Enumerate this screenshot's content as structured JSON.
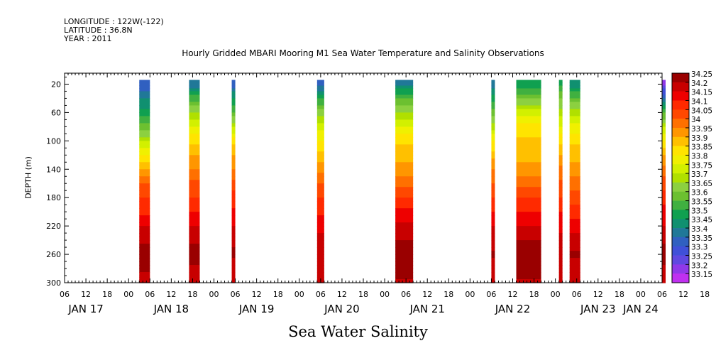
{
  "header": {
    "longitude": "LONGITUDE : 122W(-122)",
    "latitude": "LATITUDE : 36.8N",
    "year": "YEAR : 2011"
  },
  "chart_data": {
    "type": "heatmap",
    "title": "Hourly Gridded MBARI Mooring M1 Sea Water Temperature and Salinity Observations",
    "caption": "Sea Water Salinity",
    "ylabel": "DEPTH (m)",
    "y_ticks": [
      20,
      60,
      100,
      140,
      180,
      220,
      260,
      300
    ],
    "ylim": [
      300,
      0
    ],
    "x_hour_ticks": [
      "06",
      "12",
      "18",
      "00",
      "06",
      "12",
      "18",
      "00",
      "06",
      "12",
      "18",
      "00",
      "06",
      "12",
      "18",
      "00",
      "06",
      "12",
      "18",
      "00",
      "06",
      "12",
      "18",
      "00",
      "06",
      "12",
      "18",
      "00",
      "06",
      "12",
      "18",
      "00",
      "06"
    ],
    "x_day_labels": [
      "JAN 17",
      "JAN 18",
      "JAN 19",
      "JAN 20",
      "JAN 21",
      "JAN 22",
      "JAN 23",
      "JAN 24"
    ],
    "x_range_hours_from_jan17_00": [
      6,
      174
    ],
    "colorbar_levels": [
      "34.25",
      "34.2",
      "34.15",
      "34.1",
      "34.05",
      "34",
      "33.95",
      "33.9",
      "33.85",
      "33.8",
      "33.75",
      "33.7",
      "33.65",
      "33.6",
      "33.55",
      "33.5",
      "33.45",
      "33.4",
      "33.35",
      "33.3",
      "33.25",
      "33.2",
      "33.15"
    ],
    "colors": [
      "#9a0000",
      "#c80000",
      "#ee0000",
      "#ff2a00",
      "#ff4800",
      "#ff7000",
      "#ff9600",
      "#ffc000",
      "#ffe400",
      "#f0f000",
      "#d2f000",
      "#b0e000",
      "#8cd040",
      "#6cc030",
      "#40b040",
      "#10a050",
      "#109070",
      "#207898",
      "#3060c0",
      "#4050d8",
      "#6048e0",
      "#9038e8",
      "#c030f0"
    ],
    "depth_levels": [
      20,
      40,
      60,
      80,
      100,
      120,
      140,
      160,
      180,
      200,
      220,
      240,
      260,
      280,
      300
    ],
    "data_blocks": [
      {
        "start": "JAN 18 03:00",
        "end": "JAN 18 06:00",
        "salinity": [
          33.33,
          33.42,
          33.5,
          33.6,
          33.72,
          33.82,
          33.93,
          34.02,
          34.07,
          34.11,
          34.17,
          34.22,
          34.25,
          34.23,
          34.2
        ]
      },
      {
        "start": "JAN 18 17:00",
        "end": "JAN 18 20:00",
        "salinity": [
          33.38,
          33.55,
          33.68,
          33.78,
          33.86,
          33.92,
          33.98,
          34.04,
          34.08,
          34.12,
          34.17,
          34.22,
          34.24,
          34.22,
          34.2
        ]
      },
      {
        "start": "JAN 19 05:00",
        "end": "JAN 19 06:00",
        "salinity": [
          33.34,
          33.48,
          33.58,
          33.72,
          33.85,
          33.92,
          33.98,
          34.05,
          34.09,
          34.13,
          34.18,
          34.22,
          34.23,
          34.21,
          34.19
        ]
      },
      {
        "start": "JAN 20 05:00",
        "end": "JAN 20 07:00",
        "salinity": [
          33.36,
          33.52,
          33.64,
          33.75,
          33.83,
          33.9,
          33.96,
          34.02,
          34.07,
          34.11,
          34.16,
          34.2,
          34.22,
          34.2,
          34.18
        ]
      },
      {
        "start": "JAN 21 03:00",
        "end": "JAN 21 08:00",
        "salinity": [
          33.42,
          33.56,
          33.68,
          33.78,
          33.86,
          33.9,
          33.95,
          34.01,
          34.08,
          34.14,
          34.19,
          34.23,
          34.25,
          34.24,
          34.22
        ]
      },
      {
        "start": "JAN 22 06:00",
        "end": "JAN 22 07:00",
        "salinity": [
          33.4,
          33.5,
          33.6,
          33.7,
          33.82,
          33.9,
          33.97,
          34.03,
          34.08,
          34.12,
          34.17,
          34.21,
          34.23,
          34.21,
          34.19
        ]
      },
      {
        "start": "JAN 22 13:00",
        "end": "JAN 22 20:00",
        "salinity": [
          33.5,
          33.62,
          33.76,
          33.85,
          33.88,
          33.9,
          33.95,
          34.01,
          34.07,
          34.12,
          34.18,
          34.23,
          34.25,
          34.24,
          34.22
        ]
      },
      {
        "start": "JAN 23 01:00",
        "end": "JAN 23 02:00",
        "salinity": [
          33.52,
          33.62,
          33.7,
          33.78,
          33.86,
          33.93,
          33.99,
          34.04,
          34.08,
          34.12,
          34.16,
          34.2,
          34.22,
          34.2,
          34.18
        ]
      },
      {
        "start": "JAN 23 04:00",
        "end": "JAN 23 07:00",
        "salinity": [
          33.44,
          33.58,
          33.7,
          33.8,
          33.86,
          33.9,
          33.95,
          34.0,
          34.05,
          34.1,
          34.15,
          34.2,
          34.23,
          34.21,
          34.19
        ]
      },
      {
        "start": "JAN 24 06:00",
        "end": "JAN 24 07:00",
        "salinity": [
          33.22,
          33.38,
          33.56,
          33.72,
          33.83,
          33.92,
          33.99,
          34.05,
          34.1,
          34.14,
          34.18,
          34.22,
          34.24,
          34.22,
          34.2
        ]
      }
    ]
  }
}
